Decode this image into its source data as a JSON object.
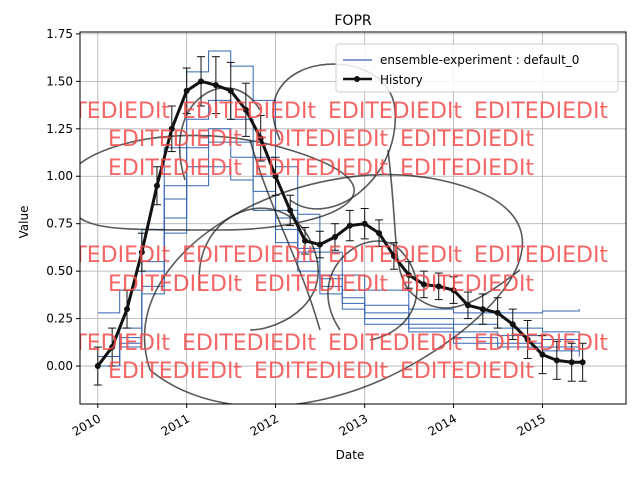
{
  "chart_data": {
    "type": "line",
    "title": "FOPR",
    "xlabel": "Date",
    "ylabel": "Value",
    "x_axis_type": "date",
    "xlim": [
      "2009-10-20",
      "2015-12-10"
    ],
    "ylim": [
      -0.2,
      1.76
    ],
    "x_ticks": [
      "2010-01-01",
      "2011-01-01",
      "2012-01-01",
      "2013-01-01",
      "2014-01-01",
      "2015-01-01"
    ],
    "x_tick_labels": [
      "2010",
      "2011",
      "2012",
      "2013",
      "2014",
      "2015"
    ],
    "y_ticks": [
      0.0,
      0.25,
      0.5,
      0.75,
      1.0,
      1.25,
      1.5,
      1.75
    ],
    "y_tick_labels": [
      "0.00",
      "0.25",
      "0.50",
      "0.75",
      "1.00",
      "1.25",
      "1.50",
      "1.75"
    ],
    "grid": true,
    "legend": {
      "placement": "top-right",
      "entries": [
        "ensemble-experiment : default_0",
        "History"
      ]
    },
    "colors": {
      "ensemble": "#3465b0",
      "history": "#111111",
      "watermark": "#f24b4b"
    },
    "watermark_text": "EDITEDIEDIt",
    "series": [
      {
        "name": "ensemble-experiment : default_0",
        "style": "step",
        "members": [
          {
            "x": [
              "2010-01-01",
              "2010-04-01",
              "2010-07-01",
              "2010-10-01",
              "2011-01-01",
              "2011-04-01",
              "2011-07-01",
              "2011-10-01",
              "2012-01-01",
              "2012-04-01",
              "2012-07-01",
              "2012-10-01",
              "2013-01-01",
              "2013-07-01",
              "2014-01-01",
              "2014-07-01",
              "2015-01-01",
              "2015-06-01"
            ],
            "y": [
              0.28,
              0.4,
              0.72,
              1.15,
              1.55,
              1.66,
              1.58,
              1.4,
              1.05,
              0.8,
              0.6,
              0.48,
              0.4,
              0.3,
              0.28,
              0.28,
              0.29,
              0.3
            ]
          },
          {
            "x": [
              "2010-01-01",
              "2010-04-01",
              "2010-07-01",
              "2010-10-01",
              "2011-01-01",
              "2011-04-01",
              "2011-07-01",
              "2011-10-01",
              "2012-01-01",
              "2012-04-01",
              "2012-07-01",
              "2012-10-01",
              "2013-01-01",
              "2013-07-01",
              "2014-01-01",
              "2014-07-01",
              "2015-01-01",
              "2015-06-01"
            ],
            "y": [
              0.05,
              0.2,
              0.55,
              0.95,
              1.3,
              1.4,
              1.3,
              1.1,
              0.82,
              0.62,
              0.48,
              0.4,
              0.32,
              0.25,
              0.22,
              0.2,
              0.18,
              0.17
            ]
          },
          {
            "x": [
              "2010-01-01",
              "2010-04-01",
              "2010-07-01",
              "2010-10-01",
              "2011-01-01",
              "2011-04-01",
              "2011-07-01",
              "2011-10-01",
              "2012-01-01",
              "2012-04-01",
              "2012-07-01",
              "2012-10-01",
              "2013-01-01",
              "2013-07-01",
              "2014-01-01",
              "2014-07-01",
              "2015-01-01",
              "2015-06-01"
            ],
            "y": [
              0.0,
              0.15,
              0.5,
              0.88,
              1.15,
              1.25,
              1.18,
              1.0,
              0.78,
              0.6,
              0.46,
              0.36,
              0.28,
              0.22,
              0.18,
              0.16,
              0.14,
              0.12
            ]
          },
          {
            "x": [
              "2010-01-01",
              "2010-04-01",
              "2010-07-01",
              "2010-10-01",
              "2011-01-01",
              "2011-04-01",
              "2011-07-01",
              "2011-10-01",
              "2012-01-01",
              "2012-04-01",
              "2012-07-01",
              "2012-10-01",
              "2013-01-01",
              "2013-07-01",
              "2014-01-01",
              "2014-07-01",
              "2015-01-01",
              "2015-06-01"
            ],
            "y": [
              0.0,
              0.12,
              0.42,
              0.78,
              1.05,
              1.18,
              1.1,
              0.92,
              0.72,
              0.55,
              0.42,
              0.33,
              0.25,
              0.2,
              0.15,
              0.12,
              0.1,
              0.08
            ]
          },
          {
            "x": [
              "2010-01-01",
              "2010-04-01",
              "2010-07-01",
              "2010-10-01",
              "2011-01-01",
              "2011-04-01",
              "2011-07-01",
              "2011-10-01",
              "2012-01-01",
              "2012-04-01",
              "2012-07-01",
              "2012-10-01",
              "2013-01-01",
              "2013-07-01",
              "2014-01-01",
              "2014-07-01",
              "2015-01-01",
              "2015-06-01"
            ],
            "y": [
              0.0,
              0.1,
              0.38,
              0.7,
              0.95,
              1.05,
              0.98,
              0.82,
              0.65,
              0.5,
              0.38,
              0.3,
              0.22,
              0.18,
              0.12,
              0.1,
              0.08,
              0.05
            ]
          }
        ]
      },
      {
        "name": "History",
        "style": "line-marker-errorbar",
        "x": [
          "2010-01-01",
          "2010-03-01",
          "2010-05-01",
          "2010-07-01",
          "2010-09-01",
          "2010-11-01",
          "2011-01-01",
          "2011-03-01",
          "2011-05-01",
          "2011-07-01",
          "2011-09-01",
          "2011-11-01",
          "2012-01-01",
          "2012-03-01",
          "2012-05-01",
          "2012-07-01",
          "2012-09-01",
          "2012-11-01",
          "2013-01-01",
          "2013-03-01",
          "2013-05-01",
          "2013-07-01",
          "2013-09-01",
          "2013-11-01",
          "2014-01-01",
          "2014-03-01",
          "2014-05-01",
          "2014-07-01",
          "2014-09-01",
          "2014-11-01",
          "2015-01-01",
          "2015-03-01",
          "2015-05-01",
          "2015-06-15"
        ],
        "y": [
          0.0,
          0.1,
          0.3,
          0.6,
          0.95,
          1.25,
          1.45,
          1.5,
          1.48,
          1.45,
          1.35,
          1.2,
          1.0,
          0.82,
          0.66,
          0.64,
          0.68,
          0.74,
          0.75,
          0.7,
          0.58,
          0.48,
          0.43,
          0.42,
          0.4,
          0.32,
          0.3,
          0.28,
          0.22,
          0.14,
          0.06,
          0.03,
          0.02,
          0.02
        ],
        "error": [
          0.1,
          0.1,
          0.1,
          0.1,
          0.1,
          0.12,
          0.12,
          0.13,
          0.15,
          0.15,
          0.14,
          0.12,
          0.1,
          0.08,
          0.07,
          0.07,
          0.07,
          0.08,
          0.08,
          0.07,
          0.07,
          0.07,
          0.07,
          0.07,
          0.07,
          0.07,
          0.08,
          0.08,
          0.08,
          0.1,
          0.1,
          0.1,
          0.1,
          0.1
        ]
      }
    ]
  }
}
